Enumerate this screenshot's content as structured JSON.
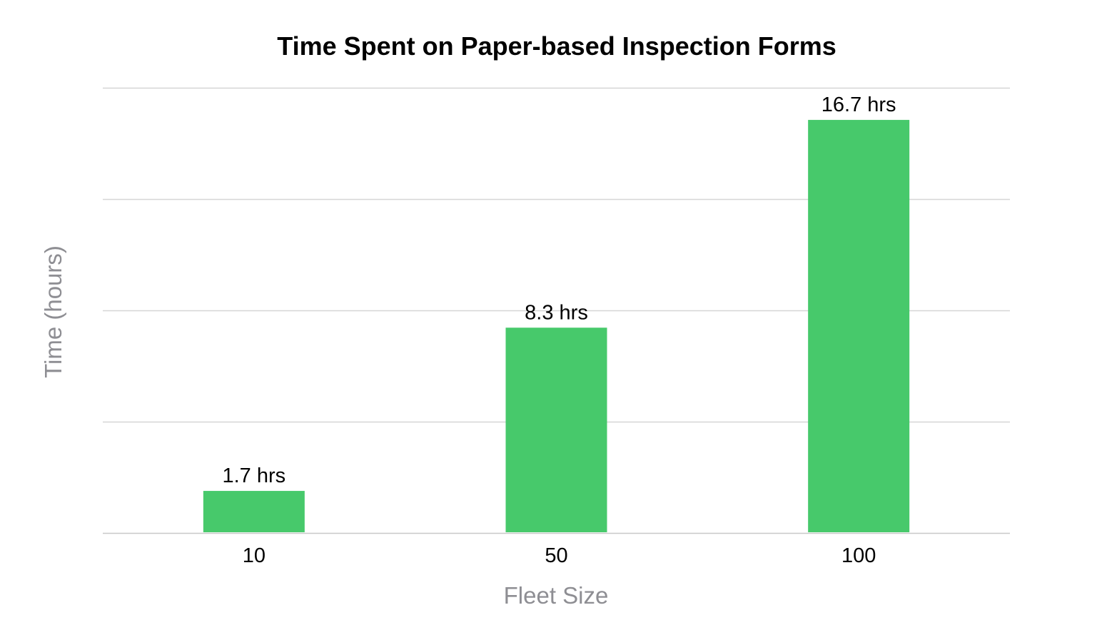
{
  "chart_data": {
    "type": "bar",
    "title": "Time Spent on Paper-based Inspection Forms",
    "xlabel": "Fleet Size",
    "ylabel": "Time (hours)",
    "categories": [
      "10",
      "50",
      "100"
    ],
    "values": [
      1.7,
      8.3,
      16.7
    ],
    "data_labels": [
      "1.7 hrs",
      "8.3 hrs",
      "16.7 hrs"
    ],
    "ylim": [
      0,
      18
    ],
    "y_gridlines": [
      0,
      4.5,
      9,
      13.5,
      18
    ],
    "y_tick_labels_shown": false,
    "grid": true,
    "legend": "none",
    "colors": {
      "bar": "#47c96b",
      "title": "#000000",
      "axis_title": "#8e8e93",
      "gridline": "#d6d6d6"
    }
  }
}
